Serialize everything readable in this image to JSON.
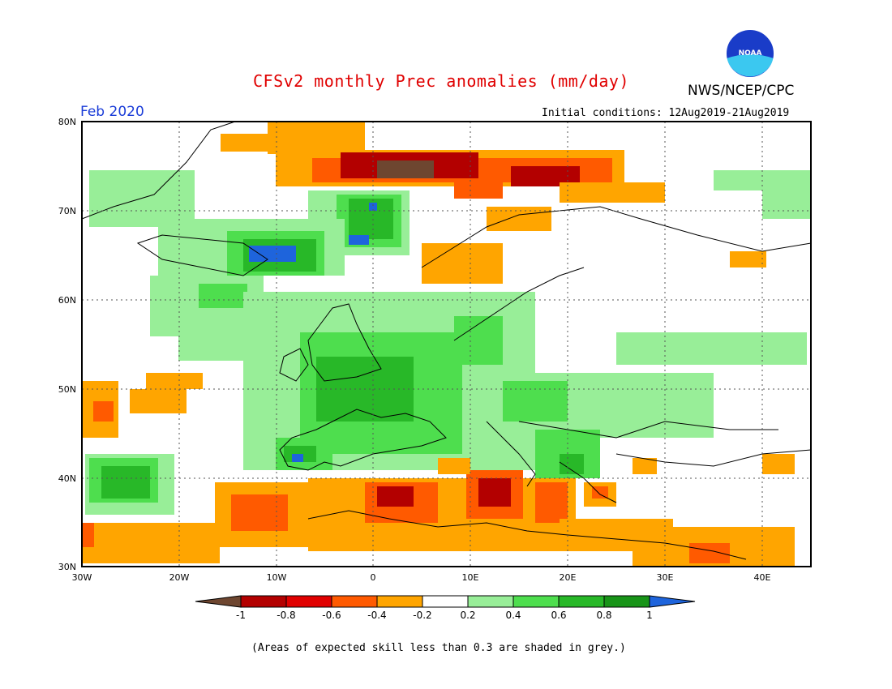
{
  "header": {
    "title": "CFSv2 monthly Prec anomalies (mm/day)",
    "agency": "NWS/NCEP/CPC",
    "valid_month": "Feb 2020",
    "initial_conditions": "Initial conditions: 12Aug2019-21Aug2019"
  },
  "logo": {
    "text": "NOAA",
    "icon": "noaa-logo-icon"
  },
  "map": {
    "lat_labels": [
      "80N",
      "70N",
      "60N",
      "50N",
      "40N",
      "30N"
    ],
    "lon_labels": [
      "30W",
      "20W",
      "10W",
      "0",
      "10E",
      "20E",
      "30E",
      "40E"
    ],
    "extent": {
      "lon_min": -30,
      "lon_max": 45,
      "lat_min": 30,
      "lat_max": 80
    },
    "grid": "dotted"
  },
  "colorbar": {
    "labels": [
      "-1",
      "-0.8",
      "-0.6",
      "-0.4",
      "-0.2",
      "0.2",
      "0.4",
      "0.6",
      "0.8",
      "1"
    ],
    "colors": [
      "#6e4630",
      "#b30000",
      "#e00000",
      "#ff5a00",
      "#ffa500",
      "#ffffff",
      "#98ee98",
      "#4ede4e",
      "#28b828",
      "#189418",
      "#1e64dc"
    ]
  },
  "footnote": "(Areas of expected skill less than 0.3 are shaded in grey.)"
}
